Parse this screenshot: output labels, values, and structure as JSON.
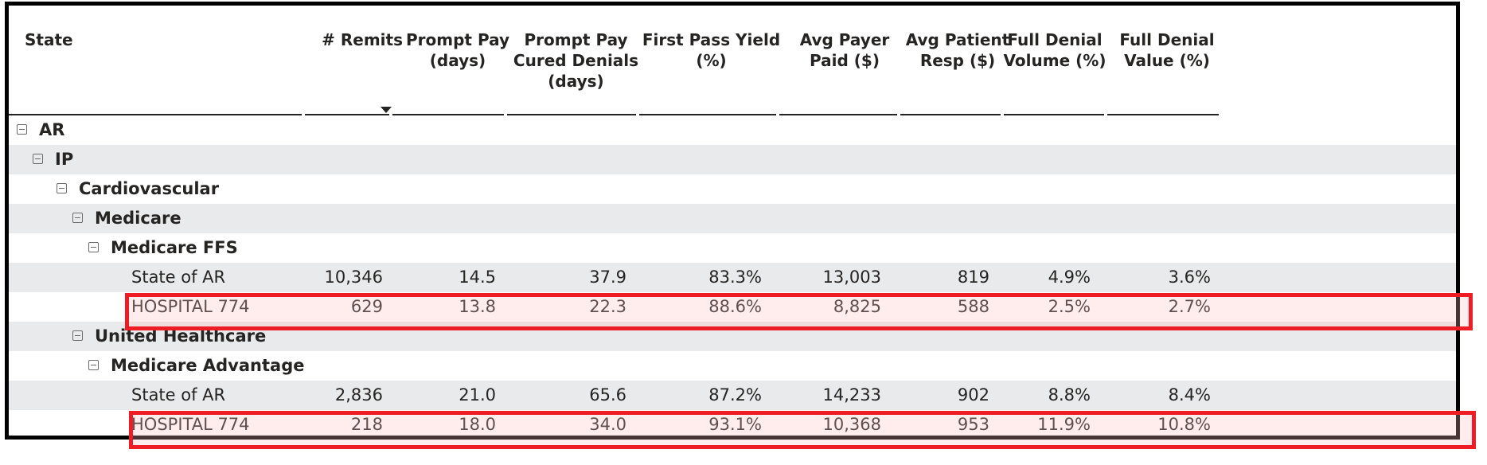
{
  "columns": [
    {
      "label": "State"
    },
    {
      "label": "# Remits",
      "sorted": "descending"
    },
    {
      "label": "Prompt Pay (days)"
    },
    {
      "label": "Prompt Pay Cured Denials (days)"
    },
    {
      "label": "First Pass Yield (%)"
    },
    {
      "label": "Avg Payer Paid ($)"
    },
    {
      "label": "Avg Patient Resp ($)"
    },
    {
      "label": "Full Denial Volume (%)"
    },
    {
      "label": "Full Denial Value (%)"
    }
  ],
  "rows": [
    {
      "label": "AR",
      "group": true
    },
    {
      "label": "IP",
      "group": true
    },
    {
      "label": "Cardiovascular",
      "group": true
    },
    {
      "label": "Medicare",
      "group": true
    },
    {
      "label": "Medicare FFS",
      "group": true
    },
    {
      "label": "State of AR",
      "values": [
        "10,346",
        "14.5",
        "37.9",
        "83.3%",
        "13,003",
        "819",
        "4.9%",
        "3.6%"
      ]
    },
    {
      "label": "HOSPITAL 774",
      "values": [
        "629",
        "13.8",
        "22.3",
        "88.6%",
        "8,825",
        "588",
        "2.5%",
        "2.7%"
      ],
      "highlighted": true
    },
    {
      "label": "United Healthcare",
      "group": true
    },
    {
      "label": "Medicare Advantage",
      "group": true
    },
    {
      "label": "State of AR",
      "values": [
        "2,836",
        "21.0",
        "65.6",
        "87.2%",
        "14,233",
        "902",
        "8.8%",
        "8.4%"
      ]
    },
    {
      "label": "HOSPITAL 774",
      "values": [
        "218",
        "18.0",
        "34.0",
        "93.1%",
        "10,368",
        "953",
        "11.9%",
        "10.8%"
      ],
      "highlighted": true
    }
  ],
  "colors": {
    "highlight": "#ee1c25",
    "stripe": "#e9eaeb",
    "frame": "#000000"
  }
}
